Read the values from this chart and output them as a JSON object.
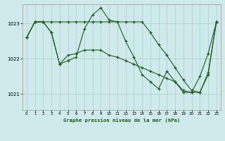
{
  "title": "Graphe pression niveau de la mer (hPa)",
  "bg_color": "#ceeaea",
  "grid_color": "#aacfcf",
  "line_color": "#1e5c1e",
  "xlim": [
    -0.5,
    23.5
  ],
  "ylim": [
    1020.55,
    1023.55
  ],
  "yticks": [
    1021,
    1022,
    1023
  ],
  "xticks": [
    0,
    1,
    2,
    3,
    4,
    5,
    6,
    7,
    8,
    9,
    10,
    11,
    12,
    13,
    14,
    15,
    16,
    17,
    18,
    19,
    20,
    21,
    22,
    23
  ],
  "series1_x": [
    0,
    1,
    2,
    3,
    4,
    5,
    6,
    7,
    8,
    9,
    10,
    11,
    12,
    13,
    14,
    15,
    16,
    17,
    18,
    19,
    20,
    21,
    22,
    23
  ],
  "series1_y": [
    1022.6,
    1023.05,
    1023.05,
    1022.75,
    1021.85,
    1021.95,
    1022.05,
    1022.85,
    1023.25,
    1023.45,
    1023.1,
    1023.05,
    1022.5,
    1022.05,
    1021.55,
    1021.35,
    1021.15,
    1021.65,
    1021.35,
    1021.05,
    1021.05,
    1021.5,
    1022.15,
    1023.05
  ],
  "series2_x": [
    0,
    1,
    2,
    3,
    4,
    5,
    6,
    7,
    8,
    9,
    10,
    11,
    12,
    13,
    14,
    15,
    16,
    17,
    18,
    19,
    20,
    21,
    22,
    23
  ],
  "series2_y": [
    1022.6,
    1023.05,
    1023.05,
    1023.05,
    1023.05,
    1023.05,
    1023.05,
    1023.05,
    1023.05,
    1023.05,
    1023.05,
    1023.05,
    1023.05,
    1023.05,
    1023.05,
    1022.75,
    1022.4,
    1022.1,
    1021.75,
    1021.4,
    1021.1,
    1021.05,
    1021.55,
    1023.05
  ],
  "series3_x": [
    0,
    1,
    2,
    3,
    4,
    5,
    6,
    7,
    8,
    9,
    10,
    11,
    12,
    13,
    14,
    15,
    16,
    17,
    18,
    19,
    20,
    21,
    22,
    23
  ],
  "series3_y": [
    1022.6,
    1023.05,
    1023.05,
    1022.75,
    1021.85,
    1022.1,
    1022.15,
    1022.25,
    1022.25,
    1022.25,
    1022.1,
    1022.05,
    1021.95,
    1021.85,
    1021.75,
    1021.65,
    1021.55,
    1021.45,
    1021.35,
    1021.1,
    1021.05,
    1021.05,
    1021.6,
    1023.05
  ]
}
